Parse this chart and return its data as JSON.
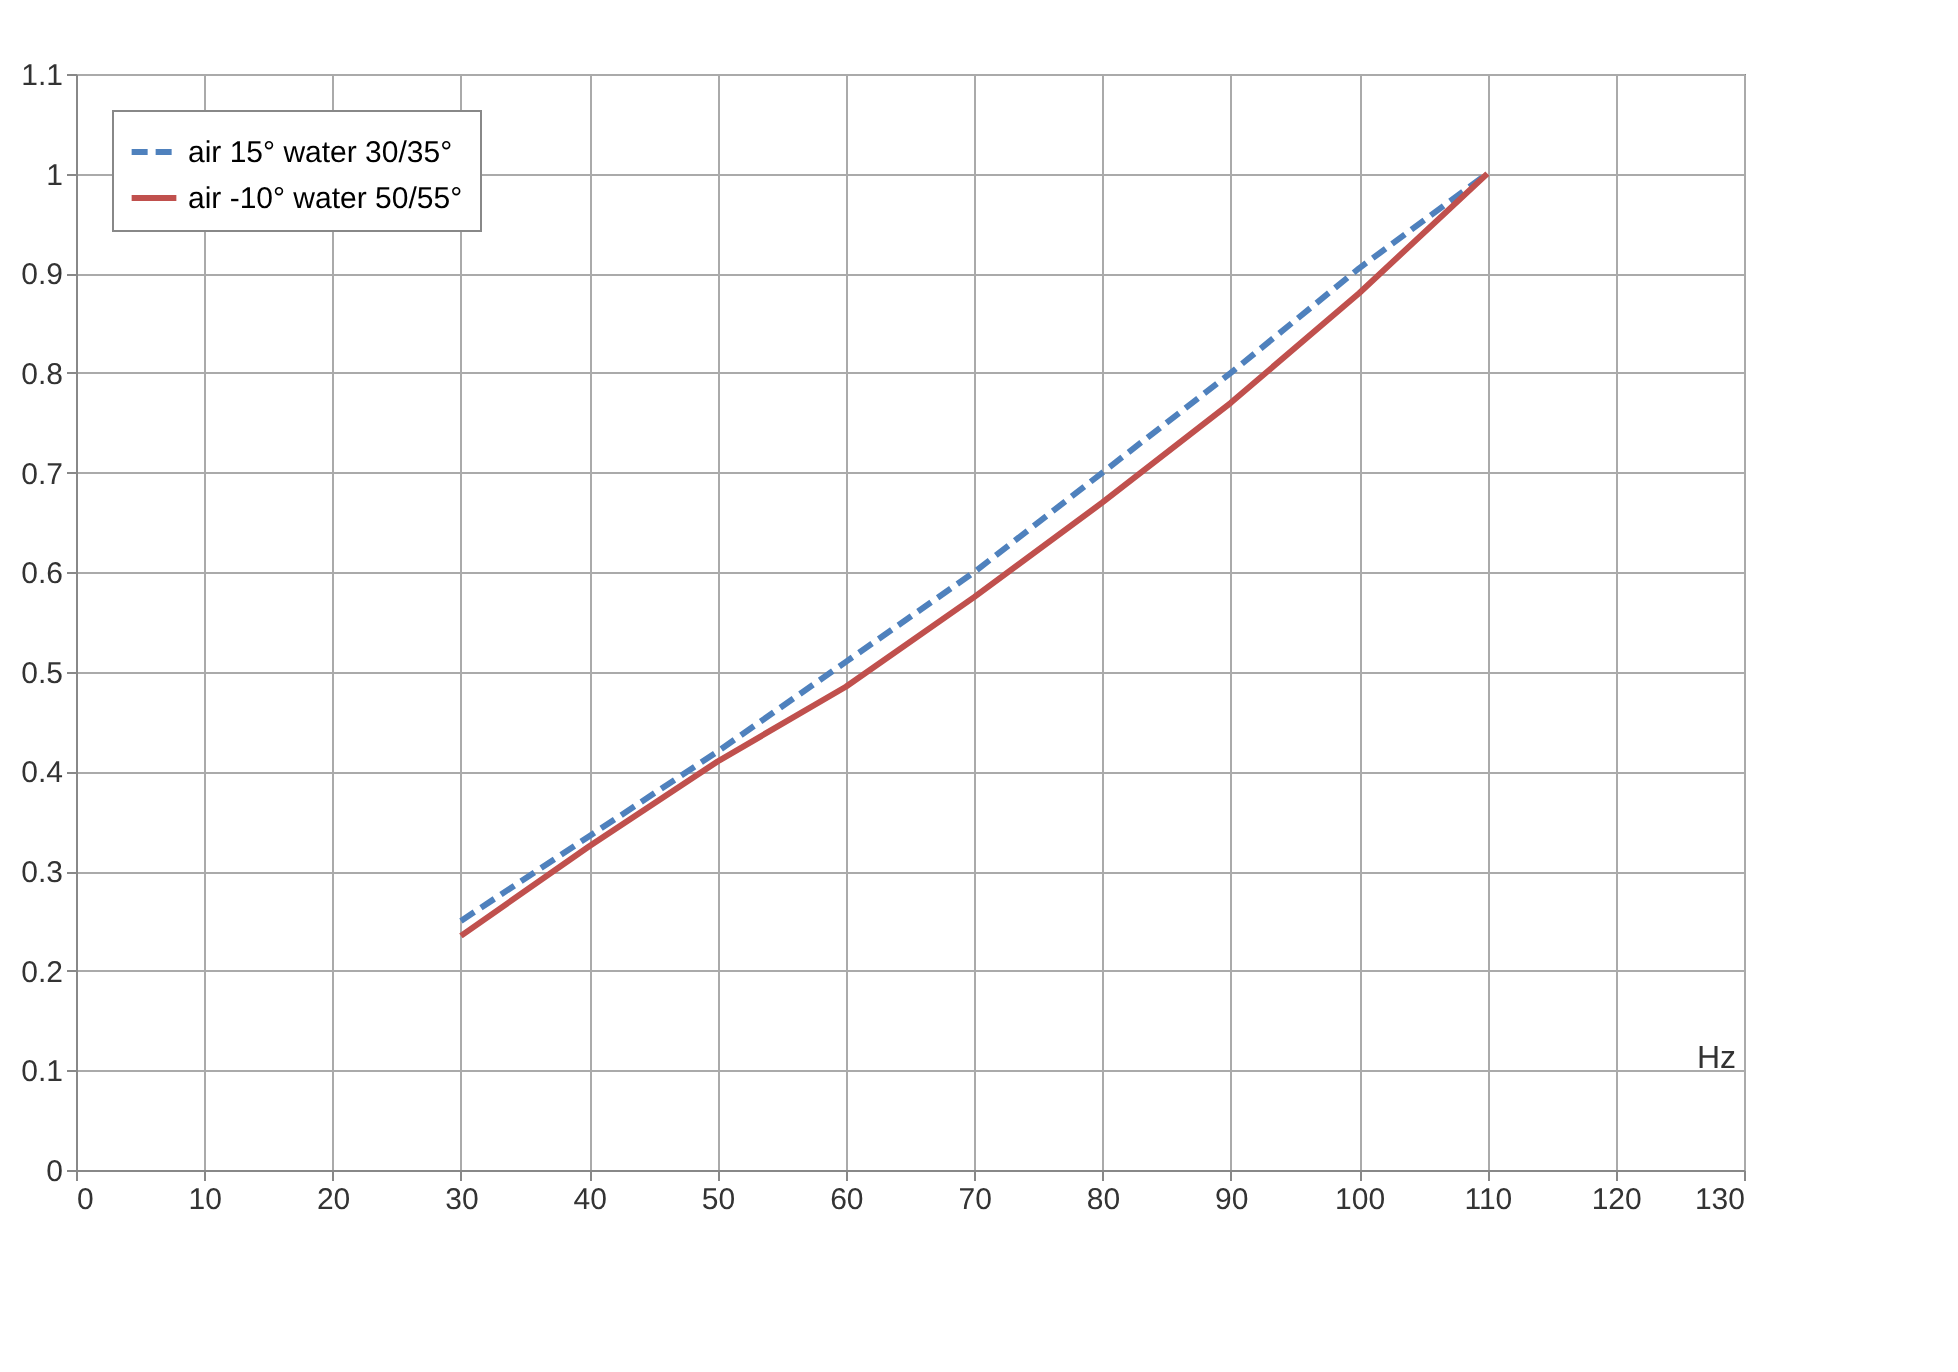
{
  "chart_data": {
    "type": "line",
    "xlabel": "Hz",
    "x": [
      30,
      40,
      50,
      60,
      70,
      80,
      90,
      100,
      110
    ],
    "series": [
      {
        "name": "air 15° water 30/35°",
        "color": "#4f81bd",
        "line_style": "dashed",
        "values": [
          0.25,
          0.335,
          0.42,
          0.51,
          0.6,
          0.7,
          0.8,
          0.905,
          1.0
        ]
      },
      {
        "name": "air -10° water 50/55°",
        "color": "#c0504d",
        "line_style": "solid",
        "values": [
          0.235,
          0.325,
          0.41,
          0.485,
          0.575,
          0.67,
          0.77,
          0.88,
          1.0
        ]
      }
    ],
    "xlim": [
      0,
      130
    ],
    "xticks": [
      0,
      10,
      20,
      30,
      40,
      50,
      60,
      70,
      80,
      90,
      100,
      110,
      120,
      130
    ],
    "ylim": [
      0,
      1.1
    ],
    "yticks": [
      0,
      0.1,
      0.2,
      0.3,
      0.4,
      0.5,
      0.6,
      0.7,
      0.8,
      0.9,
      1,
      1.1
    ],
    "grid": true,
    "legend": "top left",
    "marker": "none"
  }
}
